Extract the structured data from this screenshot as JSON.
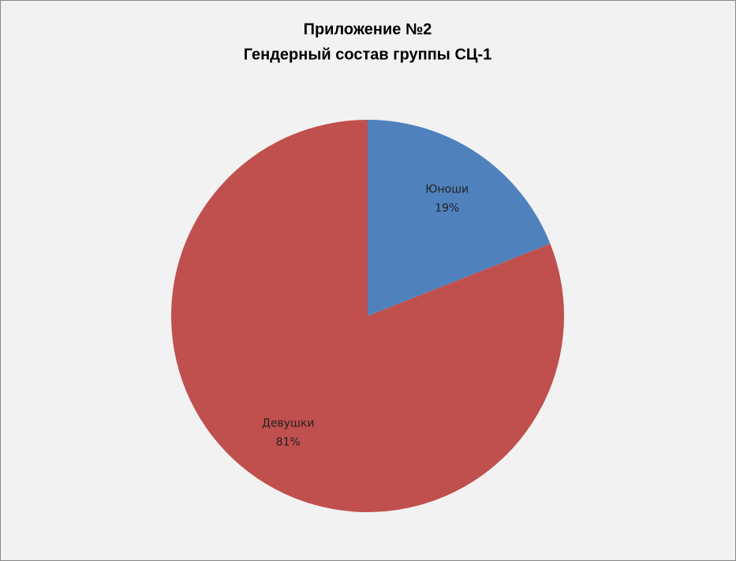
{
  "chart_data": {
    "type": "pie",
    "title": [
      "Приложение №2",
      "Гендерный состав группы СЦ-1"
    ],
    "categories": [
      "Юноши",
      "Девушки"
    ],
    "values": [
      19,
      81
    ],
    "value_labels": [
      "19%",
      "81%"
    ],
    "colors": [
      "#4f81bd",
      "#c0504d"
    ]
  }
}
